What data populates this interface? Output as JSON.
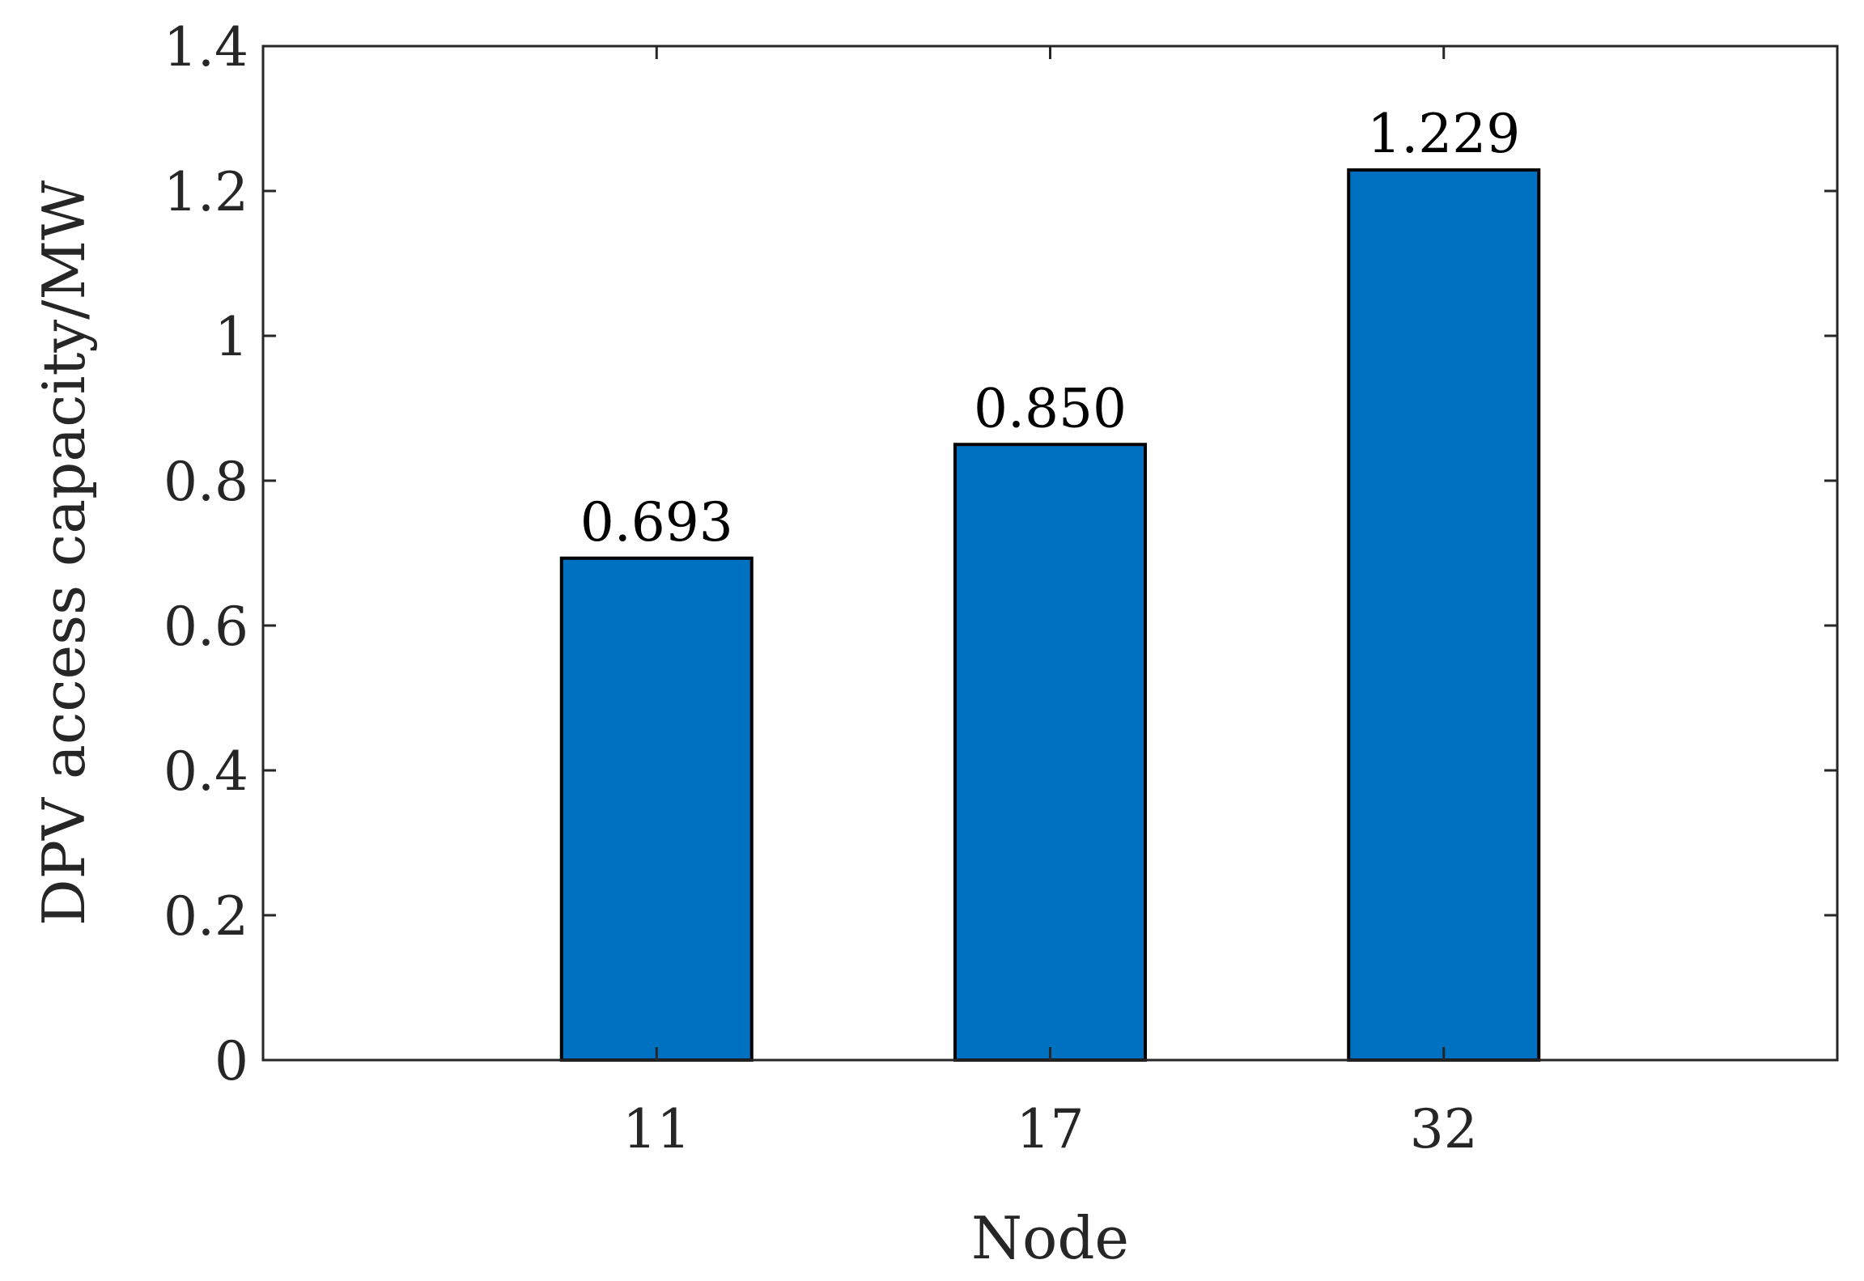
{
  "chart_data": {
    "type": "bar",
    "categories": [
      "11",
      "17",
      "32"
    ],
    "values": [
      0.693,
      0.85,
      1.229
    ],
    "data_labels": [
      "0.693",
      "0.850",
      "1.229"
    ],
    "xlabel": "Node",
    "ylabel": "DPV access capacity/MW",
    "ylim": [
      0,
      1.4
    ],
    "yticks": [
      0,
      0.2,
      0.4,
      0.6,
      0.8,
      1.0,
      1.2,
      1.4
    ],
    "ytick_labels": [
      "0",
      "0.2",
      "0.4",
      "0.6",
      "0.8",
      "1",
      "1.2",
      "1.4"
    ],
    "xlim": [
      0,
      4
    ],
    "x_positions": [
      1,
      2,
      3
    ],
    "bar_color": "#0070C0",
    "grid": false,
    "legend": "none"
  }
}
